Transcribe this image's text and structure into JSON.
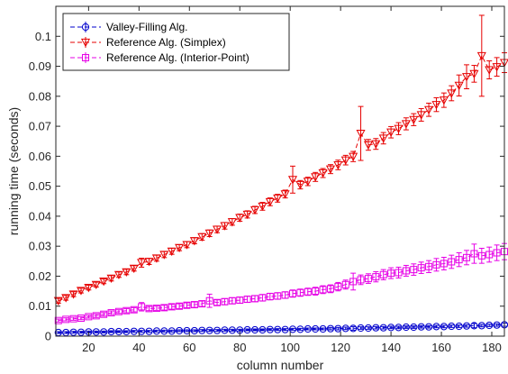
{
  "chart_data": {
    "type": "line",
    "title": "",
    "xlabel": "column number",
    "ylabel": "running time (seconds)",
    "xlim": [
      7,
      185
    ],
    "ylim": [
      0,
      0.11
    ],
    "xticks": [
      20,
      40,
      60,
      80,
      100,
      120,
      140,
      160,
      180
    ],
    "yticks": [
      0,
      0.01,
      0.02,
      0.03,
      0.04,
      0.05,
      0.06,
      0.07,
      0.08,
      0.09,
      0.1
    ],
    "xtick_labels": [
      "20",
      "40",
      "60",
      "80",
      "100",
      "120",
      "140",
      "160",
      "180"
    ],
    "ytick_labels": [
      "0",
      "0.01",
      "0.02",
      "0.03",
      "0.04",
      "0.05",
      "0.06",
      "0.07",
      "0.08",
      "0.09",
      "0.1"
    ],
    "grid": false,
    "legend_position": "top-left",
    "x": [
      8,
      11,
      14,
      17,
      20,
      23,
      26,
      29,
      32,
      35,
      38,
      41,
      44,
      47,
      50,
      53,
      56,
      59,
      62,
      65,
      68,
      71,
      74,
      77,
      80,
      83,
      86,
      89,
      92,
      95,
      98,
      101,
      104,
      107,
      110,
      113,
      116,
      119,
      122,
      125,
      128,
      131,
      134,
      137,
      140,
      143,
      146,
      149,
      152,
      155,
      158,
      161,
      164,
      167,
      170,
      173,
      176,
      179,
      182,
      185
    ],
    "series": [
      {
        "name": "Valley-Filling Alg.",
        "color": "#0000cc",
        "marker": "circle",
        "y": [
          0.0012,
          0.0012,
          0.0013,
          0.0013,
          0.0014,
          0.0014,
          0.0014,
          0.0015,
          0.0015,
          0.0015,
          0.0016,
          0.0016,
          0.0016,
          0.0017,
          0.0017,
          0.0017,
          0.0018,
          0.0018,
          0.0018,
          0.0019,
          0.0019,
          0.0019,
          0.002,
          0.002,
          0.002,
          0.0021,
          0.0021,
          0.0021,
          0.0022,
          0.0022,
          0.0022,
          0.0023,
          0.0023,
          0.0024,
          0.0024,
          0.0024,
          0.0025,
          0.0025,
          0.0026,
          0.0026,
          0.0027,
          0.0027,
          0.0028,
          0.0028,
          0.0029,
          0.0029,
          0.003,
          0.003,
          0.0031,
          0.0031,
          0.0032,
          0.0032,
          0.0033,
          0.0033,
          0.0034,
          0.0035,
          0.0035,
          0.0036,
          0.0037,
          0.0038
        ],
        "err": [
          0.0003,
          0.0003,
          0.0003,
          0.0003,
          0.0003,
          0.0003,
          0.0003,
          0.0003,
          0.0003,
          0.0003,
          0.0003,
          0.0003,
          0.0003,
          0.0003,
          0.0003,
          0.0003,
          0.0003,
          0.0003,
          0.0003,
          0.0003,
          0.0003,
          0.0003,
          0.0003,
          0.0003,
          0.0003,
          0.0003,
          0.0003,
          0.0003,
          0.0003,
          0.0003,
          0.0003,
          0.0003,
          0.0003,
          0.0003,
          0.0003,
          0.0003,
          0.0004,
          0.0004,
          0.0004,
          0.0006,
          0.0004,
          0.0004,
          0.0004,
          0.0004,
          0.0004,
          0.0004,
          0.0004,
          0.0004,
          0.0004,
          0.0004,
          0.0004,
          0.0004,
          0.0004,
          0.0004,
          0.0004,
          0.0007,
          0.0004,
          0.0004,
          0.0004,
          0.0005
        ]
      },
      {
        "name": "Reference Alg. (Simplex)",
        "color": "#e60000",
        "marker": "triangle-down",
        "y": [
          0.0118,
          0.0128,
          0.014,
          0.0152,
          0.0162,
          0.0172,
          0.0183,
          0.0193,
          0.0205,
          0.0214,
          0.0226,
          0.0245,
          0.0249,
          0.026,
          0.0272,
          0.0283,
          0.0295,
          0.0305,
          0.0318,
          0.0331,
          0.0343,
          0.0356,
          0.0368,
          0.0381,
          0.0395,
          0.0406,
          0.0421,
          0.0433,
          0.0448,
          0.046,
          0.0474,
          0.0522,
          0.0505,
          0.0516,
          0.0531,
          0.0544,
          0.0557,
          0.0571,
          0.0587,
          0.0599,
          0.0676,
          0.0638,
          0.0641,
          0.066,
          0.068,
          0.0692,
          0.0708,
          0.0722,
          0.0738,
          0.0755,
          0.0772,
          0.0787,
          0.081,
          0.0836,
          0.0865,
          0.0875,
          0.0935,
          0.0888,
          0.0898,
          0.0912
        ],
        "err": [
          0.0008,
          0.0008,
          0.0008,
          0.0008,
          0.0008,
          0.0008,
          0.0008,
          0.0009,
          0.0009,
          0.0009,
          0.0009,
          0.0015,
          0.001,
          0.001,
          0.001,
          0.001,
          0.001,
          0.001,
          0.001,
          0.0011,
          0.0011,
          0.0011,
          0.0011,
          0.0011,
          0.0012,
          0.0012,
          0.0012,
          0.0013,
          0.0013,
          0.0013,
          0.0013,
          0.0045,
          0.0014,
          0.0014,
          0.0015,
          0.0015,
          0.0015,
          0.0016,
          0.0016,
          0.0017,
          0.009,
          0.0018,
          0.0018,
          0.0019,
          0.0019,
          0.002,
          0.002,
          0.002,
          0.0021,
          0.0022,
          0.0023,
          0.0024,
          0.0025,
          0.0035,
          0.004,
          0.0028,
          0.0135,
          0.003,
          0.0031,
          0.0033
        ]
      },
      {
        "name": "Reference Alg. (Interior-Point)",
        "color": "#e600e6",
        "marker": "square",
        "y": [
          0.0052,
          0.0056,
          0.0058,
          0.006,
          0.0065,
          0.0068,
          0.0073,
          0.0078,
          0.0082,
          0.0085,
          0.0088,
          0.0098,
          0.0092,
          0.0093,
          0.0095,
          0.0098,
          0.01,
          0.0103,
          0.0105,
          0.0108,
          0.0118,
          0.0112,
          0.0115,
          0.0118,
          0.012,
          0.0123,
          0.0125,
          0.0128,
          0.0132,
          0.0134,
          0.0137,
          0.0142,
          0.0145,
          0.0148,
          0.015,
          0.0155,
          0.0158,
          0.0165,
          0.0172,
          0.0182,
          0.0188,
          0.0192,
          0.0198,
          0.0205,
          0.021,
          0.0212,
          0.0218,
          0.0222,
          0.0228,
          0.0232,
          0.0238,
          0.0242,
          0.0248,
          0.0255,
          0.0262,
          0.0275,
          0.0268,
          0.0272,
          0.0278,
          0.0282
        ],
        "err": [
          0.0005,
          0.0005,
          0.0005,
          0.0005,
          0.0005,
          0.0006,
          0.0006,
          0.0006,
          0.0006,
          0.0007,
          0.0007,
          0.0014,
          0.0007,
          0.0007,
          0.0008,
          0.0008,
          0.0008,
          0.0008,
          0.0009,
          0.0009,
          0.0022,
          0.0009,
          0.001,
          0.001,
          0.001,
          0.001,
          0.001,
          0.0011,
          0.0011,
          0.0011,
          0.0011,
          0.0012,
          0.0012,
          0.0012,
          0.0013,
          0.0013,
          0.0013,
          0.0014,
          0.0015,
          0.0028,
          0.0016,
          0.0016,
          0.0017,
          0.0017,
          0.0018,
          0.0018,
          0.0018,
          0.0019,
          0.0019,
          0.002,
          0.0021,
          0.0021,
          0.0022,
          0.0023,
          0.0024,
          0.0032,
          0.0025,
          0.0025,
          0.0026,
          0.0027
        ]
      }
    ]
  }
}
